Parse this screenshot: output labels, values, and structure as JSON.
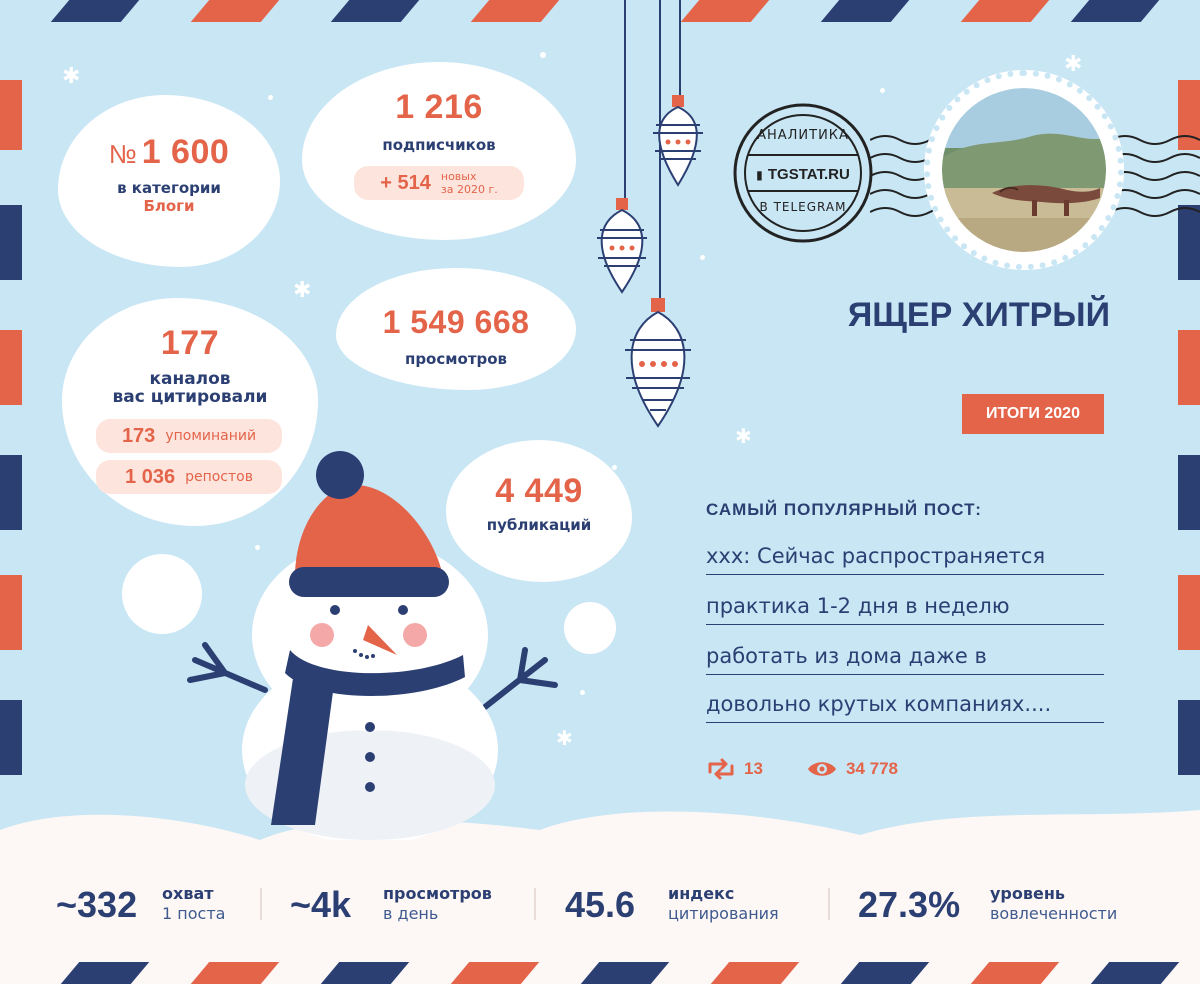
{
  "rank": {
    "prefix": "№",
    "value": "1 600",
    "label": "в категории",
    "category": "Блоги"
  },
  "subscribers": {
    "value": "1 216",
    "label": "подписчиков",
    "new_value": "+ 514",
    "new_label_1": "новых",
    "new_label_2": "за 2020 г."
  },
  "citations": {
    "value": "177",
    "label_1": "каналов",
    "label_2": "вас цитировали",
    "mentions_value": "173",
    "mentions_label": "упоминаний",
    "reposts_value": "1 036",
    "reposts_label": "репостов"
  },
  "views": {
    "value": "1 549 668",
    "label": "просмотров"
  },
  "publications": {
    "value": "4 449",
    "label": "публикаций"
  },
  "stamp": {
    "top_text": "АНАЛИТИКА",
    "brand": "TGSTAT.RU",
    "bottom_text": "В TELEGRAM"
  },
  "channel": {
    "name": "ЯЩЕР ХИТРЫЙ",
    "badge": "ИТОГИ 2020"
  },
  "popular_post": {
    "heading": "САМЫЙ ПОПУЛЯРНЫЙ ПОСТ:",
    "lines": [
      "xxx: Сейчас распространяется",
      "практика 1-2 дня в неделю",
      "работать из дома даже в",
      "довольно крутых компаниях...."
    ],
    "reposts": "13",
    "views": "34 778"
  },
  "stats": [
    {
      "value": "~332",
      "label_1": "охват",
      "label_2": "1 поста"
    },
    {
      "value": "~4k",
      "label_1": "просмотров",
      "label_2": "в день"
    },
    {
      "value": "45.6",
      "label_1": "индекс",
      "label_2": "цитирования"
    },
    {
      "value": "27.3%",
      "label_1": "уровень",
      "label_2": "вовлеченности"
    }
  ],
  "colors": {
    "accent": "#e4644a",
    "navy": "#2b3f73",
    "sky": "#c9e6f4",
    "pill": "#fde5de"
  },
  "icons": [
    "repost-icon",
    "eye-icon",
    "chart-bars-icon",
    "snowflake-icon",
    "ornament-icon",
    "snowman-illustration"
  ]
}
